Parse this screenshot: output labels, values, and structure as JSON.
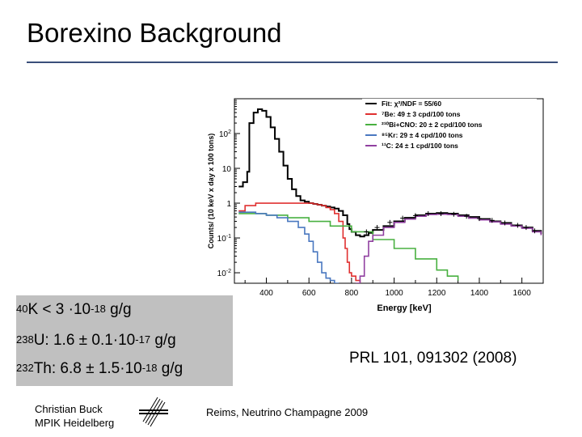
{
  "slide": {
    "title": "Borexino Background",
    "footer_author_line1": "Christian Buck",
    "footer_author_line2": "MPIK Heidelberg",
    "footer_conference": "Reims, Neutrino Champagne 2009",
    "reference": "PRL 101, 091302 (2008)"
  },
  "limits": [
    {
      "pre": "40",
      "main1": "K < 3 ·10",
      "sup": "-18",
      "tail": " g/g"
    },
    {
      "pre": "238",
      "main1": "U: 1.6 ± 0.1·10",
      "sup": "-17",
      "tail": " g/g"
    },
    {
      "pre": "232",
      "main1": "Th: 6.8 ± 1.5·10",
      "sup": "-18",
      "tail": " g/g"
    }
  ],
  "colors": {
    "fit": "#000000",
    "be7": "#e03030",
    "bi_cno": "#48b040",
    "kr85": "#4a78c0",
    "c11": "#9040a0",
    "data": "#000000"
  },
  "chart_data": {
    "type": "line",
    "xlabel": "Energy [keV]",
    "ylabel": "Counts/ (10 keV x day x 100 tons)",
    "xlim": [
      250,
      1700
    ],
    "ylog": true,
    "ylim": [
      0.005,
      1000
    ],
    "xticks": [
      400,
      600,
      800,
      1000,
      1200,
      1400,
      1600
    ],
    "ytick_labels": [
      "10^-2",
      "10^-1",
      "1",
      "10",
      "10^2"
    ],
    "legend_position": "top-right",
    "legend": [
      {
        "key": "fit",
        "label": "Fit:  χ²/NDF = 55/60"
      },
      {
        "key": "be7",
        "label": "⁷Be: 49 ± 3 cpd/100 tons"
      },
      {
        "key": "bi_cno",
        "label": "²¹⁰Bi+CNO: 20 ± 2 cpd/100 tons"
      },
      {
        "key": "kr85",
        "label": "⁸⁵Kr: 29 ± 4 cpd/100 tons"
      },
      {
        "key": "c11",
        "label": "¹¹C: 24 ± 1 cpd/100 tons"
      }
    ],
    "series": [
      {
        "key": "fit",
        "x": [
          270,
          290,
          310,
          320,
          340,
          360,
          380,
          400,
          420,
          440,
          460,
          480,
          500,
          520,
          540,
          560,
          580,
          600,
          620,
          640,
          660,
          680,
          700,
          720,
          740,
          760,
          780,
          790,
          800,
          820,
          840,
          860,
          880,
          900,
          950,
          1000,
          1050,
          1100,
          1150,
          1200,
          1250,
          1300,
          1350,
          1400,
          1450,
          1500,
          1550,
          1600,
          1650,
          1690
        ],
        "y": [
          3.0,
          4.0,
          8.0,
          200,
          400,
          500,
          450,
          300,
          150,
          70,
          30,
          12,
          5,
          2.5,
          1.6,
          1.2,
          1.1,
          1.0,
          0.95,
          0.9,
          0.85,
          0.8,
          0.75,
          0.7,
          0.6,
          0.45,
          0.25,
          0.18,
          0.15,
          0.12,
          0.11,
          0.12,
          0.14,
          0.17,
          0.22,
          0.3,
          0.38,
          0.45,
          0.5,
          0.52,
          0.5,
          0.45,
          0.4,
          0.35,
          0.3,
          0.27,
          0.23,
          0.2,
          0.16,
          0.13
        ]
      },
      {
        "key": "be7",
        "x": [
          270,
          300,
          350,
          400,
          450,
          500,
          550,
          600,
          620,
          640,
          660,
          680,
          700,
          720,
          740,
          760,
          770,
          780,
          790,
          800,
          820,
          840
        ],
        "y": [
          0.6,
          0.85,
          1.0,
          1.0,
          1.0,
          1.0,
          1.0,
          1.0,
          0.95,
          0.9,
          0.85,
          0.75,
          0.65,
          0.5,
          0.3,
          0.1,
          0.05,
          0.02,
          0.01,
          0.008,
          0.006,
          0.005
        ]
      },
      {
        "key": "bi_cno",
        "x": [
          270,
          300,
          400,
          500,
          600,
          700,
          800,
          900,
          1000,
          1100,
          1200,
          1250,
          1300
        ],
        "y": [
          0.5,
          0.5,
          0.45,
          0.38,
          0.3,
          0.22,
          0.15,
          0.09,
          0.05,
          0.025,
          0.012,
          0.008,
          0.006
        ]
      },
      {
        "key": "kr85",
        "x": [
          270,
          300,
          350,
          400,
          450,
          500,
          550,
          580,
          600,
          620,
          640,
          660,
          680,
          700,
          720,
          740
        ],
        "y": [
          0.55,
          0.55,
          0.5,
          0.45,
          0.38,
          0.3,
          0.2,
          0.13,
          0.08,
          0.04,
          0.02,
          0.01,
          0.007,
          0.006,
          0.005,
          0.005
        ]
      },
      {
        "key": "c11",
        "x": [
          820,
          840,
          860,
          880,
          900,
          950,
          1000,
          1050,
          1100,
          1150,
          1200,
          1250,
          1300,
          1350,
          1400,
          1450,
          1500,
          1550,
          1600,
          1650,
          1690
        ],
        "y": [
          0.005,
          0.008,
          0.03,
          0.08,
          0.12,
          0.2,
          0.28,
          0.35,
          0.42,
          0.47,
          0.48,
          0.47,
          0.42,
          0.37,
          0.33,
          0.29,
          0.25,
          0.22,
          0.19,
          0.15,
          0.12
        ]
      },
      {
        "key": "data",
        "x": [
          870,
          920,
          980,
          1040,
          1100,
          1160,
          1220,
          1280,
          1340,
          1400,
          1460,
          1520,
          1580,
          1620,
          1660
        ],
        "y": [
          0.15,
          0.2,
          0.28,
          0.37,
          0.44,
          0.5,
          0.5,
          0.48,
          0.42,
          0.36,
          0.32,
          0.27,
          0.23,
          0.2,
          0.16
        ]
      }
    ]
  }
}
